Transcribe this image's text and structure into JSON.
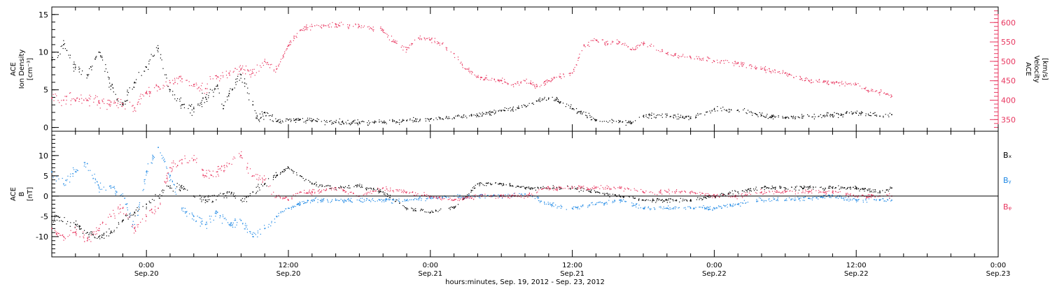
{
  "colors": {
    "black": "#000000",
    "pink": "#e8365f",
    "blue": "#1e88e5"
  },
  "x_axis": {
    "title": "hours:minutes, Sep. 19, 2012 - Sep. 23, 2012",
    "ticks": [
      {
        "time": "0:00",
        "date": "Sep.20",
        "hours": 24
      },
      {
        "time": "12:00",
        "date": "Sep.20",
        "hours": 36
      },
      {
        "time": "0:00",
        "date": "Sep.21",
        "hours": 48
      },
      {
        "time": "12:00",
        "date": "Sep.21",
        "hours": 60
      },
      {
        "time": "0:00",
        "date": "Sep.22",
        "hours": 72
      },
      {
        "time": "12:00",
        "date": "Sep.22",
        "hours": 84
      },
      {
        "time": "0:00",
        "date": "Sep.23",
        "hours": 96
      }
    ]
  },
  "chart_data": [
    {
      "type": "scatter",
      "panel": "top",
      "xlim_hours": [
        16,
        96
      ],
      "left_axis": {
        "label_lines": [
          "ACE",
          "Ion Density",
          "[cm⁻³]"
        ],
        "ylim": [
          -0.5,
          16
        ],
        "ticks": [
          "0",
          "5",
          "10",
          "15"
        ],
        "tick_values": [
          0,
          5,
          10,
          15
        ]
      },
      "right_axis": {
        "label_lines": [
          "ACE",
          "Velocity",
          "[km/s]"
        ],
        "ylim": [
          320,
          640
        ],
        "ticks": [
          "350",
          "400",
          "450",
          "500",
          "550",
          "600"
        ],
        "tick_values": [
          350,
          400,
          450,
          500,
          550,
          600
        ]
      },
      "series": [
        {
          "axis": "left",
          "color": "#000000",
          "points": [
            [
              16.0,
              9.0
            ],
            [
              17.0,
              11.0
            ],
            [
              18.0,
              8.0
            ],
            [
              19.0,
              7.0
            ],
            [
              20.0,
              10.0
            ],
            [
              21.0,
              5.5
            ],
            [
              22.0,
              3.0
            ],
            [
              23.0,
              6.0
            ],
            [
              24.0,
              8.0
            ],
            [
              25.0,
              10.5
            ],
            [
              26.0,
              5.0
            ],
            [
              27.0,
              3.0
            ],
            [
              28.0,
              2.5
            ],
            [
              29.0,
              4.0
            ],
            [
              30.0,
              5.5
            ],
            [
              30.5,
              2.5
            ],
            [
              31.0,
              4.5
            ],
            [
              32.0,
              7.0
            ],
            [
              33.0,
              3.0
            ],
            [
              33.5,
              1.0
            ],
            [
              34.0,
              2.0
            ],
            [
              35.0,
              0.8
            ],
            [
              36.0,
              1.0
            ],
            [
              38.0,
              0.9
            ],
            [
              40.0,
              0.7
            ],
            [
              42.0,
              0.7
            ],
            [
              44.0,
              0.7
            ],
            [
              46.0,
              0.9
            ],
            [
              48.0,
              1.1
            ],
            [
              50.0,
              1.3
            ],
            [
              52.0,
              1.6
            ],
            [
              54.0,
              2.2
            ],
            [
              56.0,
              2.9
            ],
            [
              57.0,
              3.5
            ],
            [
              58.0,
              3.9
            ],
            [
              59.0,
              3.4
            ],
            [
              60.0,
              2.5
            ],
            [
              62.0,
              1.0
            ],
            [
              64.0,
              0.8
            ],
            [
              65.0,
              0.6
            ],
            [
              66.0,
              1.5
            ],
            [
              68.0,
              1.6
            ],
            [
              70.0,
              1.2
            ],
            [
              72.0,
              2.4
            ],
            [
              74.0,
              2.3
            ],
            [
              76.0,
              1.6
            ],
            [
              78.0,
              1.3
            ],
            [
              80.0,
              1.5
            ],
            [
              82.0,
              1.7
            ],
            [
              84.0,
              1.9
            ],
            [
              86.0,
              1.5
            ],
            [
              87.0,
              1.7
            ]
          ]
        },
        {
          "axis": "right",
          "color": "#e8365f",
          "points": [
            [
              16.0,
              405
            ],
            [
              17.0,
              400
            ],
            [
              18.0,
              398
            ],
            [
              19.0,
              400
            ],
            [
              20.0,
              393
            ],
            [
              21.0,
              395
            ],
            [
              22.0,
              390
            ],
            [
              23.0,
              380
            ],
            [
              24.0,
              420
            ],
            [
              25.0,
              435
            ],
            [
              26.0,
              445
            ],
            [
              27.0,
              455
            ],
            [
              28.0,
              440
            ],
            [
              29.0,
              430
            ],
            [
              30.0,
              460
            ],
            [
              31.0,
              470
            ],
            [
              32.0,
              480
            ],
            [
              33.0,
              470
            ],
            [
              34.0,
              500
            ],
            [
              35.0,
              480
            ],
            [
              36.0,
              540
            ],
            [
              37.0,
              580
            ],
            [
              38.0,
              590
            ],
            [
              40.0,
              595
            ],
            [
              42.0,
              590
            ],
            [
              44.0,
              580
            ],
            [
              45.0,
              550
            ],
            [
              46.0,
              530
            ],
            [
              47.0,
              560
            ],
            [
              48.0,
              555
            ],
            [
              49.0,
              545
            ],
            [
              50.0,
              520
            ],
            [
              51.0,
              480
            ],
            [
              52.0,
              460
            ],
            [
              54.0,
              450
            ],
            [
              55.0,
              440
            ],
            [
              56.0,
              450
            ],
            [
              57.0,
              435
            ],
            [
              58.0,
              450
            ],
            [
              59.0,
              460
            ],
            [
              60.0,
              470
            ],
            [
              61.0,
              540
            ],
            [
              62.0,
              555
            ],
            [
              63.0,
              545
            ],
            [
              64.0,
              550
            ],
            [
              65.0,
              530
            ],
            [
              66.0,
              545
            ],
            [
              68.0,
              520
            ],
            [
              70.0,
              510
            ],
            [
              72.0,
              500
            ],
            [
              74.0,
              495
            ],
            [
              76.0,
              480
            ],
            [
              78.0,
              470
            ],
            [
              80.0,
              450
            ],
            [
              82.0,
              445
            ],
            [
              84.0,
              440
            ],
            [
              85.0,
              425
            ],
            [
              86.0,
              420
            ],
            [
              87.0,
              410
            ]
          ]
        }
      ]
    },
    {
      "type": "scatter",
      "panel": "bottom",
      "xlim_hours": [
        16,
        96
      ],
      "left_axis": {
        "label_lines": [
          "ACE",
          "B",
          "[nT]"
        ],
        "ylim": [
          -15,
          16
        ],
        "ticks": [
          "-10",
          "-5",
          "0",
          "5",
          "10"
        ],
        "tick_values": [
          -10,
          -5,
          0,
          5,
          10
        ]
      },
      "series": [
        {
          "name": "Bₓ",
          "color": "#000000",
          "points": [
            [
              16.0,
              -5
            ],
            [
              18.0,
              -7
            ],
            [
              19.0,
              -9
            ],
            [
              20.0,
              -10
            ],
            [
              21.0,
              -9
            ],
            [
              22.0,
              -6
            ],
            [
              23.0,
              -4
            ],
            [
              24.0,
              -2
            ],
            [
              25.0,
              0
            ],
            [
              26.0,
              2
            ],
            [
              27.0,
              2
            ],
            [
              28.0,
              0
            ],
            [
              29.0,
              -1
            ],
            [
              30.0,
              0
            ],
            [
              31.0,
              1
            ],
            [
              32.0,
              -1
            ],
            [
              33.0,
              1
            ],
            [
              34.0,
              3
            ],
            [
              35.0,
              5
            ],
            [
              36.0,
              7
            ],
            [
              37.0,
              5
            ],
            [
              38.0,
              3
            ],
            [
              40.0,
              2
            ],
            [
              42.0,
              2.5
            ],
            [
              44.0,
              1
            ],
            [
              46.0,
              -3
            ],
            [
              48.0,
              -4
            ],
            [
              50.0,
              -3
            ],
            [
              52.0,
              3
            ],
            [
              54.0,
              3
            ],
            [
              56.0,
              2
            ],
            [
              58.0,
              2
            ],
            [
              60.0,
              2
            ],
            [
              62.0,
              1
            ],
            [
              64.0,
              0
            ],
            [
              66.0,
              -1
            ],
            [
              68.0,
              -1
            ],
            [
              70.0,
              -1
            ],
            [
              72.0,
              0
            ],
            [
              74.0,
              1
            ],
            [
              76.0,
              2
            ],
            [
              78.0,
              2
            ],
            [
              80.0,
              2
            ],
            [
              82.0,
              2
            ],
            [
              84.0,
              2
            ],
            [
              86.0,
              1
            ],
            [
              87.0,
              2
            ]
          ]
        },
        {
          "name": "Bᵧ",
          "color": "#1e88e5",
          "points": [
            [
              16.0,
              6
            ],
            [
              17.0,
              3
            ],
            [
              18.0,
              6
            ],
            [
              19.0,
              8
            ],
            [
              20.0,
              2
            ],
            [
              21.0,
              2
            ],
            [
              22.0,
              0
            ],
            [
              23.0,
              -8
            ],
            [
              24.0,
              6
            ],
            [
              25.0,
              12
            ],
            [
              26.0,
              5
            ],
            [
              27.0,
              -3
            ],
            [
              28.0,
              -5
            ],
            [
              29.0,
              -7
            ],
            [
              30.0,
              -4
            ],
            [
              31.0,
              -7
            ],
            [
              32.0,
              -6
            ],
            [
              33.0,
              -10
            ],
            [
              34.0,
              -8
            ],
            [
              35.0,
              -5
            ],
            [
              36.0,
              -3
            ],
            [
              37.0,
              -2
            ],
            [
              38.0,
              -1
            ],
            [
              40.0,
              -1
            ],
            [
              42.0,
              -1
            ],
            [
              44.0,
              -1
            ],
            [
              46.0,
              -1
            ],
            [
              48.0,
              -0.5
            ],
            [
              50.0,
              0
            ],
            [
              52.0,
              0
            ],
            [
              54.0,
              0
            ],
            [
              56.0,
              0.5
            ],
            [
              58.0,
              -2
            ],
            [
              60.0,
              -3
            ],
            [
              62.0,
              -2
            ],
            [
              64.0,
              -1
            ],
            [
              66.0,
              -3
            ],
            [
              68.0,
              -3
            ],
            [
              70.0,
              -3
            ],
            [
              72.0,
              -3
            ],
            [
              74.0,
              -2
            ],
            [
              76.0,
              -1
            ],
            [
              78.0,
              -1
            ],
            [
              80.0,
              -0.5
            ],
            [
              82.0,
              0
            ],
            [
              84.0,
              -1
            ],
            [
              86.0,
              -1
            ],
            [
              87.0,
              -1
            ]
          ]
        },
        {
          "name": "Bᵩ",
          "color": "#e8365f",
          "points": [
            [
              16.0,
              -8
            ],
            [
              17.0,
              -10
            ],
            [
              18.0,
              -9
            ],
            [
              19.0,
              -11
            ],
            [
              20.0,
              -8
            ],
            [
              21.0,
              -5
            ],
            [
              22.0,
              -3
            ],
            [
              23.0,
              -8
            ],
            [
              24.0,
              -5
            ],
            [
              25.0,
              -3
            ],
            [
              26.0,
              7
            ],
            [
              27.0,
              9
            ],
            [
              28.0,
              9
            ],
            [
              29.0,
              5
            ],
            [
              30.0,
              6
            ],
            [
              31.0,
              8
            ],
            [
              32.0,
              10
            ],
            [
              33.0,
              5
            ],
            [
              34.0,
              4
            ],
            [
              35.0,
              0
            ],
            [
              36.0,
              -1
            ],
            [
              37.0,
              1
            ],
            [
              38.0,
              1
            ],
            [
              40.0,
              2
            ],
            [
              42.0,
              0
            ],
            [
              44.0,
              2
            ],
            [
              46.0,
              1
            ],
            [
              48.0,
              0
            ],
            [
              50.0,
              -1
            ],
            [
              52.0,
              0
            ],
            [
              54.0,
              0
            ],
            [
              56.0,
              0
            ],
            [
              58.0,
              2
            ],
            [
              60.0,
              2
            ],
            [
              62.0,
              2
            ],
            [
              64.0,
              2
            ],
            [
              66.0,
              1
            ],
            [
              68.0,
              1
            ],
            [
              70.0,
              1
            ],
            [
              72.0,
              0
            ],
            [
              74.0,
              0
            ],
            [
              76.0,
              1
            ],
            [
              78.0,
              1
            ],
            [
              80.0,
              1
            ],
            [
              82.0,
              1
            ],
            [
              84.0,
              0
            ],
            [
              86.0,
              0
            ],
            [
              87.0,
              0
            ]
          ]
        }
      ]
    }
  ]
}
